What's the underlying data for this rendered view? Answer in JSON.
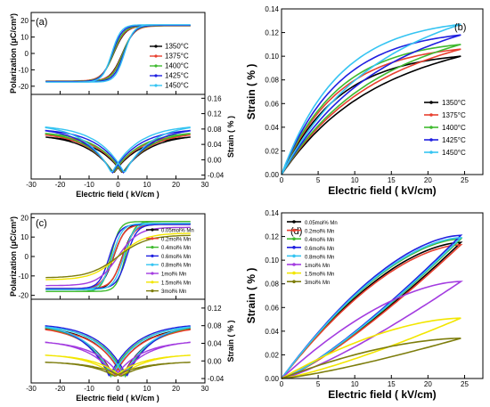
{
  "chart_data": [
    {
      "panel": "(a)",
      "type": "line",
      "polarization": {
        "ylabel": "Polarization (μC/cm²)",
        "yticks": [
          "-20",
          "-10",
          "0",
          "10",
          "20"
        ],
        "ylim": [
          -25,
          25
        ],
        "xlim": [
          -30,
          30
        ]
      },
      "strain": {
        "ylabel": "Strain ( % )",
        "yticks": [
          "-0.04",
          "0.00",
          "0.04",
          "0.08",
          "0.12",
          "0.16"
        ],
        "ylim": [
          -0.05,
          0.17
        ],
        "xlim": [
          -30,
          30
        ]
      },
      "xlabel": "Electric field ( kV/cm )",
      "xticks": [
        "-30",
        "-20",
        "-10",
        "0",
        "10",
        "20",
        "30"
      ],
      "series": [
        {
          "name": "1350°C",
          "color": "#000000",
          "Ps": 17.0,
          "Ec": 1.5,
          "a": 4.2,
          "Smax": 0.1
        },
        {
          "name": "1375°C",
          "color": "#e8402f",
          "Ps": 16.8,
          "Ec": 1.6,
          "a": 4.0,
          "Smax": 0.106
        },
        {
          "name": "1400°C",
          "color": "#3fba2f",
          "Ps": 17.0,
          "Ec": 1.7,
          "a": 3.8,
          "Smax": 0.11
        },
        {
          "name": "1425°C",
          "color": "#1f1fe0",
          "Ps": 17.2,
          "Ec": 2.0,
          "a": 3.5,
          "Smax": 0.118
        },
        {
          "name": "1450°C",
          "color": "#35c4f2",
          "Ps": 17.5,
          "Ec": 2.2,
          "a": 3.2,
          "Smax": 0.127
        }
      ]
    },
    {
      "panel": "(b)",
      "type": "line",
      "xlabel": "Electric field ( kV/cm)",
      "ylabel": "Strain ( % )",
      "xlim": [
        0,
        27.5
      ],
      "ylim": [
        0,
        0.14
      ],
      "xticks": [
        "0",
        "5",
        "10",
        "15",
        "20",
        "25"
      ],
      "yticks": [
        "0.00",
        "0.02",
        "0.04",
        "0.06",
        "0.08",
        "0.10",
        "0.12",
        "0.14"
      ],
      "legend": "right",
      "series": [
        {
          "name": "1350°C",
          "color": "#000000",
          "Smax": 0.1
        },
        {
          "name": "1375°C",
          "color": "#e8402f",
          "Smax": 0.106
        },
        {
          "name": "1400°C",
          "color": "#3fba2f",
          "Smax": 0.11
        },
        {
          "name": "1425°C",
          "color": "#1f1fe0",
          "Smax": 0.118
        },
        {
          "name": "1450°C",
          "color": "#35c4f2",
          "Smax": 0.127
        }
      ]
    },
    {
      "panel": "(c)",
      "type": "line",
      "polarization": {
        "ylabel": "Polarization (μC/cm²)",
        "yticks": [
          "-20",
          "-10",
          "0",
          "10",
          "20"
        ],
        "ylim": [
          -22,
          22
        ],
        "xlim": [
          -30,
          30
        ]
      },
      "strain": {
        "ylabel": "Strain ( % )",
        "yticks": [
          "-0.04",
          "0.00",
          "0.04",
          "0.08",
          "0.12"
        ],
        "ylim": [
          -0.05,
          0.14
        ],
        "xlim": [
          -30,
          30
        ]
      },
      "xlabel": "Electric field ( kV/cm )",
      "xticks": [
        "-30",
        "-20",
        "-10",
        "0",
        "10",
        "20",
        "30"
      ],
      "series": [
        {
          "name": "0.05mol% Mn",
          "color": "#000000",
          "Ps": 17.0,
          "Ec": 1.5,
          "a": 4.0,
          "Smax": 0.115
        },
        {
          "name": "0.2mol% Mn",
          "color": "#e8402f",
          "Ps": 16.5,
          "Ec": 1.6,
          "a": 4.0,
          "Smax": 0.113
        },
        {
          "name": "0.4mol% Mn",
          "color": "#3fba2f",
          "Ps": 18.0,
          "Ec": 2.5,
          "a": 3.0,
          "Smax": 0.118
        },
        {
          "name": "0.6mol% Mn",
          "color": "#1f1fe0",
          "Ps": 16.5,
          "Ec": 3.0,
          "a": 3.5,
          "Smax": 0.121
        },
        {
          "name": "0.8mol% Mn",
          "color": "#35c4f2",
          "Ps": 17.0,
          "Ec": 2.0,
          "a": 3.5,
          "Smax": 0.119
        },
        {
          "name": "1mol% Mn",
          "color": "#a33ce0",
          "Ps": 15.0,
          "Ec": 0.0,
          "a": 7.0,
          "Smax": 0.082
        },
        {
          "name": "1.5mol% Mn",
          "color": "#f2e600",
          "Ps": 12.0,
          "Ec": 0.0,
          "a": 9.0,
          "Smax": 0.051
        },
        {
          "name": "3mol% Mn",
          "color": "#7d7d0c",
          "Ps": 11.0,
          "Ec": 0.0,
          "a": 10.0,
          "Smax": 0.034
        }
      ]
    },
    {
      "panel": "(d)",
      "type": "line",
      "xlabel": "Electric field ( kV/cm)",
      "ylabel": "Strain ( % )",
      "xlim": [
        0,
        27.5
      ],
      "ylim": [
        0,
        0.14
      ],
      "xticks": [
        "0",
        "5",
        "10",
        "15",
        "20",
        "25"
      ],
      "yticks": [
        "0.00",
        "0.02",
        "0.04",
        "0.06",
        "0.08",
        "0.10",
        "0.12",
        "0.14"
      ],
      "legend": "top-left",
      "series": [
        {
          "name": "0.05mol% Mn",
          "color": "#000000",
          "Smax": 0.115
        },
        {
          "name": "0.2mol% Mn",
          "color": "#e8402f",
          "Smax": 0.113
        },
        {
          "name": "0.4mol% Mn",
          "color": "#3fba2f",
          "Smax": 0.118
        },
        {
          "name": "0.6mol% Mn",
          "color": "#1f1fe0",
          "Smax": 0.121
        },
        {
          "name": "0.8mol% Mn",
          "color": "#35c4f2",
          "Smax": 0.119
        },
        {
          "name": "1mol% Mn",
          "color": "#a33ce0",
          "Smax": 0.082
        },
        {
          "name": "1.5mol% Mn",
          "color": "#f2e600",
          "Smax": 0.051
        },
        {
          "name": "3mol% Mn",
          "color": "#7d7d0c",
          "Smax": 0.034
        }
      ]
    }
  ]
}
